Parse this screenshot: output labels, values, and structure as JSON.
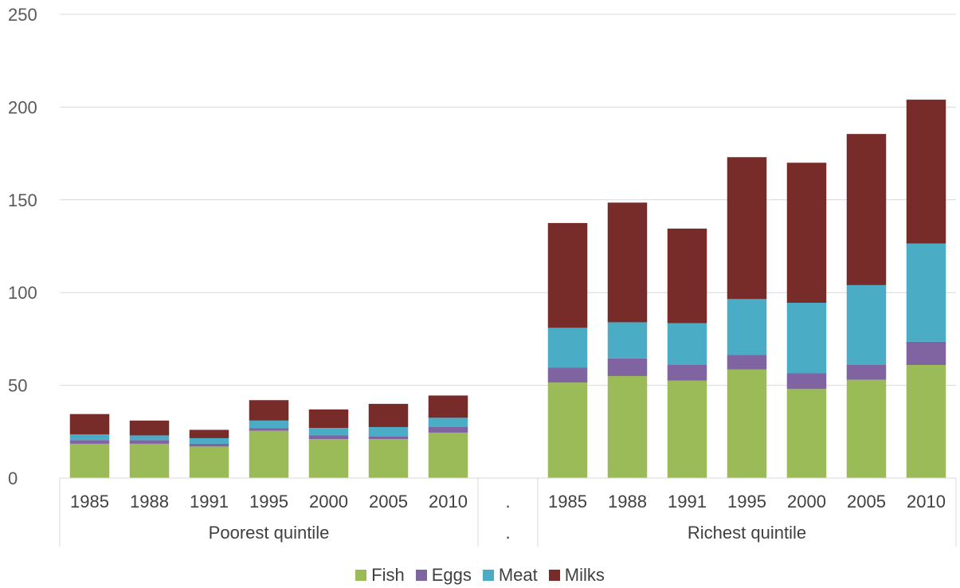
{
  "chart_data": {
    "type": "bar",
    "stacked": true,
    "ylim": [
      0,
      250
    ],
    "yticks": [
      0,
      50,
      100,
      150,
      200,
      250
    ],
    "grid": true,
    "legend_position": "bottom",
    "groups": [
      {
        "label": "Poorest quintile",
        "categories": [
          "1985",
          "1988",
          "1991",
          "1995",
          "2000",
          "2005",
          "2010"
        ]
      },
      {
        "label": ".",
        "categories": [
          "."
        ]
      },
      {
        "label": "Richest quintile",
        "categories": [
          "1985",
          "1988",
          "1991",
          "1995",
          "2000",
          "2005",
          "2010"
        ]
      }
    ],
    "series": [
      {
        "name": "Fish",
        "color": "#9BBB59",
        "values": [
          18.5,
          18.5,
          17,
          25.5,
          21,
          21,
          24.5,
          0,
          51.5,
          55,
          52.5,
          58.5,
          48,
          53,
          61
        ]
      },
      {
        "name": "Eggs",
        "color": "#8064A2",
        "values": [
          2,
          2,
          1.5,
          1.5,
          2,
          1.5,
          3,
          0,
          8,
          9.5,
          8.5,
          8,
          8.5,
          8,
          12.5
        ]
      },
      {
        "name": "Meat",
        "color": "#4BACC6",
        "values": [
          3,
          2.5,
          3,
          4,
          4,
          5,
          5,
          0,
          21.5,
          19.5,
          22.5,
          30,
          38,
          43,
          53
        ]
      },
      {
        "name": "Milks",
        "color": "#772C2A",
        "values": [
          11,
          8,
          4.5,
          11,
          10,
          12.5,
          12,
          0,
          56.5,
          64.5,
          51,
          76.5,
          75.5,
          81.5,
          77.5
        ]
      }
    ]
  }
}
